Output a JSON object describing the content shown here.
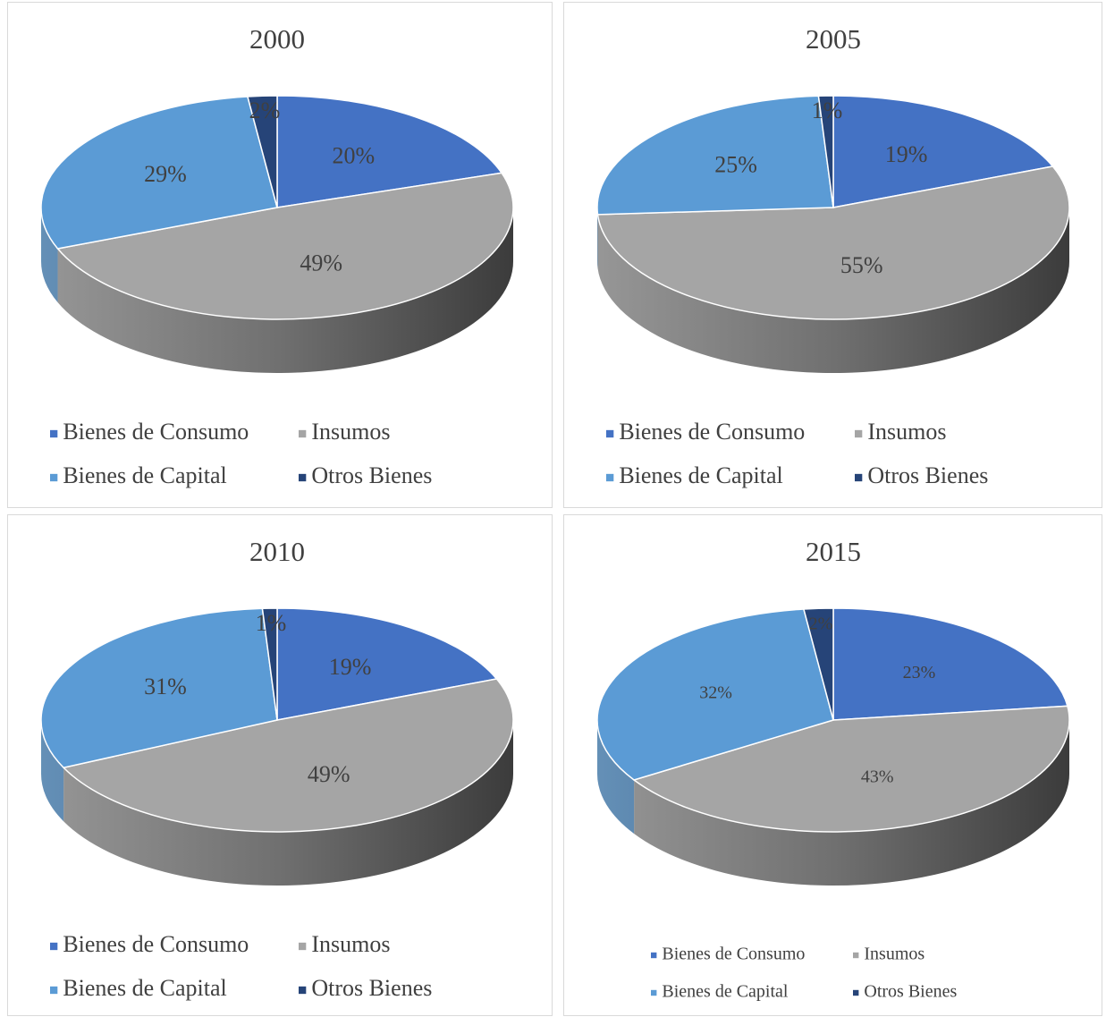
{
  "chart_data": [
    {
      "type": "pie",
      "title": "2000",
      "categories": [
        "Bienes de Consumo",
        "Insumos",
        "Bienes de Capital",
        "Otros Bienes"
      ],
      "values": [
        20,
        49,
        29,
        2
      ],
      "value_labels": [
        "20%",
        "49%",
        "29%",
        "2%"
      ],
      "colors": [
        "#4472c4",
        "#a5a5a5",
        "#5b9bd5",
        "#264478"
      ]
    },
    {
      "type": "pie",
      "title": "2005",
      "categories": [
        "Bienes de Consumo",
        "Insumos",
        "Bienes de Capital",
        "Otros Bienes"
      ],
      "values": [
        19,
        55,
        25,
        1
      ],
      "value_labels": [
        "19%",
        "55%",
        "25%",
        "1%"
      ],
      "colors": [
        "#4472c4",
        "#a5a5a5",
        "#5b9bd5",
        "#264478"
      ]
    },
    {
      "type": "pie",
      "title": "2010",
      "categories": [
        "Bienes de Consumo",
        "Insumos",
        "Bienes de Capital",
        "Otros Bienes"
      ],
      "values": [
        19,
        49,
        31,
        1
      ],
      "value_labels": [
        "19%",
        "49%",
        "31%",
        "1%"
      ],
      "colors": [
        "#4472c4",
        "#a5a5a5",
        "#5b9bd5",
        "#264478"
      ]
    },
    {
      "type": "pie",
      "title": "2015",
      "categories": [
        "Bienes de Consumo",
        "Insumos",
        "Bienes de Capital",
        "Otros Bienes"
      ],
      "values": [
        23,
        43,
        32,
        2
      ],
      "value_labels": [
        "23%",
        "43%",
        "32%",
        "2%"
      ],
      "colors": [
        "#4472c4",
        "#a5a5a5",
        "#5b9bd5",
        "#264478"
      ]
    }
  ]
}
